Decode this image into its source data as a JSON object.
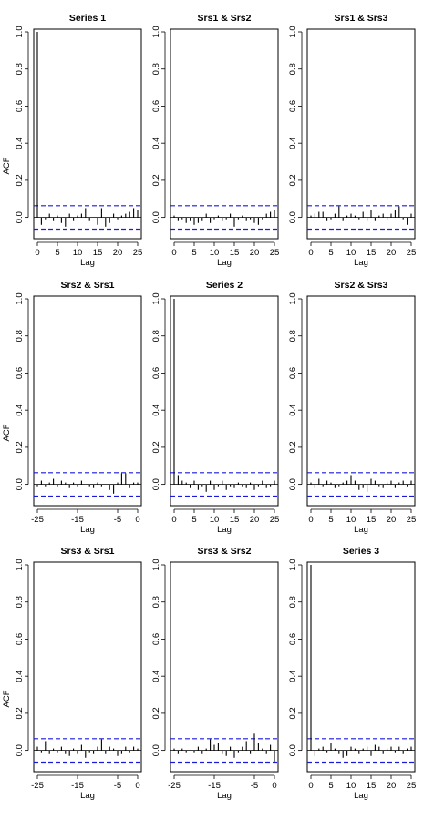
{
  "chart_data": {
    "type": "bar",
    "ylabel": "ACF",
    "xlabel": "Lag",
    "ylim": [
      -0.1,
      1.0
    ],
    "yticks": [
      "0.0",
      "0.2",
      "0.4",
      "0.6",
      "0.8",
      "1.0"
    ],
    "ci_bound": 0.063,
    "ci_line_color": "#1a1adb",
    "panels": [
      {
        "title": "Series 1",
        "xlim": [
          0,
          25
        ],
        "xticks": [
          "0",
          "5",
          "10",
          "15",
          "20",
          "25"
        ],
        "lags": [
          0,
          1,
          2,
          3,
          4,
          5,
          6,
          7,
          8,
          9,
          10,
          11,
          12,
          13,
          14,
          15,
          16,
          17,
          18,
          19,
          20,
          21,
          22,
          23,
          24,
          25
        ],
        "values": [
          1.0,
          -0.04,
          -0.01,
          0.02,
          -0.02,
          0.01,
          -0.03,
          -0.05,
          0.02,
          -0.02,
          0.01,
          0.02,
          0.05,
          -0.02,
          0.0,
          -0.04,
          0.05,
          -0.05,
          -0.03,
          0.02,
          -0.01,
          0.01,
          0.02,
          0.03,
          0.05,
          0.04
        ]
      },
      {
        "title": "Srs1 & Srs2",
        "xlim": [
          0,
          25
        ],
        "xticks": [
          "0",
          "5",
          "10",
          "15",
          "20",
          "25"
        ],
        "lags": [
          0,
          1,
          2,
          3,
          4,
          5,
          6,
          7,
          8,
          9,
          10,
          11,
          12,
          13,
          14,
          15,
          16,
          17,
          18,
          19,
          20,
          21,
          22,
          23,
          24,
          25
        ],
        "values": [
          0.01,
          -0.02,
          -0.01,
          -0.03,
          -0.02,
          -0.04,
          -0.03,
          -0.02,
          0.02,
          -0.03,
          -0.01,
          0.01,
          -0.02,
          -0.01,
          0.02,
          -0.05,
          -0.01,
          0.01,
          -0.02,
          -0.01,
          -0.03,
          -0.04,
          -0.01,
          0.02,
          0.03,
          0.04
        ]
      },
      {
        "title": "Srs1 & Srs3",
        "xlim": [
          0,
          25
        ],
        "xticks": [
          "0",
          "5",
          "10",
          "15",
          "20",
          "25"
        ],
        "lags": [
          0,
          1,
          2,
          3,
          4,
          5,
          6,
          7,
          8,
          9,
          10,
          11,
          12,
          13,
          14,
          15,
          16,
          17,
          18,
          19,
          20,
          21,
          22,
          23,
          24,
          25
        ],
        "values": [
          0.01,
          0.02,
          0.03,
          0.03,
          -0.02,
          -0.01,
          0.02,
          0.06,
          -0.02,
          0.01,
          0.02,
          0.01,
          -0.01,
          0.03,
          -0.02,
          0.04,
          -0.02,
          0.01,
          0.02,
          -0.01,
          0.02,
          0.04,
          0.06,
          -0.01,
          -0.04,
          0.02
        ]
      },
      {
        "title": "Srs2 & Srs1",
        "xlim": [
          -25,
          0
        ],
        "xticks": [
          "-25",
          "-15",
          "-5",
          "0"
        ],
        "xtick_values": [
          -25,
          -15,
          -5,
          0
        ],
        "lags": [
          -25,
          -24,
          -23,
          -22,
          -21,
          -20,
          -19,
          -18,
          -17,
          -16,
          -15,
          -14,
          -13,
          -12,
          -11,
          -10,
          -9,
          -8,
          -7,
          -6,
          -5,
          -4,
          -3,
          -2,
          -1,
          0
        ],
        "values": [
          -0.01,
          0.02,
          -0.01,
          0.01,
          0.03,
          -0.01,
          0.02,
          0.01,
          -0.02,
          0.01,
          -0.01,
          0.02,
          0.0,
          -0.01,
          -0.02,
          0.01,
          -0.01,
          0.0,
          -0.03,
          -0.05,
          0.01,
          0.06,
          0.06,
          -0.02,
          0.01,
          0.01
        ]
      },
      {
        "title": "Series 2",
        "xlim": [
          0,
          25
        ],
        "xticks": [
          "0",
          "5",
          "10",
          "15",
          "20",
          "25"
        ],
        "lags": [
          0,
          1,
          2,
          3,
          4,
          5,
          6,
          7,
          8,
          9,
          10,
          11,
          12,
          13,
          14,
          15,
          16,
          17,
          18,
          19,
          20,
          21,
          22,
          23,
          24,
          25
        ],
        "values": [
          1.0,
          0.05,
          0.02,
          0.01,
          -0.02,
          0.02,
          -0.03,
          -0.01,
          -0.04,
          0.02,
          -0.03,
          -0.01,
          0.02,
          -0.03,
          -0.01,
          -0.02,
          0.01,
          -0.01,
          -0.02,
          0.01,
          -0.03,
          -0.01,
          0.02,
          -0.02,
          -0.01,
          0.02
        ]
      },
      {
        "title": "Srs2 & Srs3",
        "xlim": [
          0,
          25
        ],
        "xticks": [
          "0",
          "5",
          "10",
          "15",
          "20",
          "25"
        ],
        "lags": [
          0,
          1,
          2,
          3,
          4,
          5,
          6,
          7,
          8,
          9,
          10,
          11,
          12,
          13,
          14,
          15,
          16,
          17,
          18,
          19,
          20,
          21,
          22,
          23,
          24,
          25
        ],
        "values": [
          0.01,
          -0.02,
          0.03,
          -0.01,
          0.02,
          0.01,
          -0.02,
          -0.01,
          0.01,
          0.02,
          0.05,
          0.02,
          -0.03,
          -0.02,
          -0.04,
          0.03,
          0.02,
          -0.01,
          -0.02,
          0.01,
          0.02,
          -0.02,
          0.01,
          0.02,
          -0.01,
          0.02
        ]
      },
      {
        "title": "Srs3 & Srs1",
        "xlim": [
          -25,
          0
        ],
        "xticks": [
          "-25",
          "-15",
          "-5",
          "0"
        ],
        "xtick_values": [
          -25,
          -15,
          -5,
          0
        ],
        "lags": [
          -25,
          -24,
          -23,
          -22,
          -21,
          -20,
          -19,
          -18,
          -17,
          -16,
          -15,
          -14,
          -13,
          -12,
          -11,
          -10,
          -9,
          -8,
          -7,
          -6,
          -5,
          -4,
          -3,
          -2,
          -1,
          0
        ],
        "values": [
          0.02,
          -0.01,
          0.05,
          -0.02,
          0.01,
          -0.01,
          0.02,
          -0.02,
          -0.03,
          0.01,
          -0.02,
          0.03,
          -0.04,
          -0.01,
          -0.02,
          0.02,
          0.06,
          -0.02,
          0.02,
          0.01,
          -0.03,
          -0.02,
          0.02,
          -0.01,
          0.02,
          0.01
        ]
      },
      {
        "title": "Srs3 & Srs2",
        "xlim": [
          -25,
          0
        ],
        "xticks": [
          "-25",
          "-15",
          "-5",
          "0"
        ],
        "xtick_values": [
          -25,
          -15,
          -5,
          0
        ],
        "lags": [
          -25,
          -24,
          -23,
          -22,
          -21,
          -20,
          -19,
          -18,
          -17,
          -16,
          -15,
          -14,
          -13,
          -12,
          -11,
          -10,
          -9,
          -8,
          -7,
          -6,
          -5,
          -4,
          -3,
          -2,
          -1,
          0
        ],
        "values": [
          0.01,
          -0.02,
          0.01,
          -0.01,
          0.0,
          -0.01,
          0.02,
          -0.02,
          0.01,
          0.06,
          0.03,
          0.04,
          -0.02,
          -0.03,
          0.02,
          -0.04,
          -0.01,
          0.02,
          0.05,
          -0.02,
          0.09,
          0.04,
          0.01,
          -0.02,
          0.03,
          -0.06
        ]
      },
      {
        "title": "Series 3",
        "xlim": [
          0,
          25
        ],
        "xticks": [
          "0",
          "5",
          "10",
          "15",
          "20",
          "25"
        ],
        "lags": [
          0,
          1,
          2,
          3,
          4,
          5,
          6,
          7,
          8,
          9,
          10,
          11,
          12,
          13,
          14,
          15,
          16,
          17,
          18,
          19,
          20,
          21,
          22,
          23,
          24,
          25
        ],
        "values": [
          1.0,
          -0.03,
          0.01,
          0.02,
          -0.01,
          0.04,
          0.01,
          -0.02,
          -0.04,
          -0.03,
          0.02,
          0.01,
          -0.02,
          0.01,
          0.02,
          -0.03,
          0.03,
          0.02,
          -0.02,
          0.01,
          0.02,
          -0.01,
          0.02,
          -0.02,
          0.01,
          0.02
        ]
      }
    ]
  }
}
